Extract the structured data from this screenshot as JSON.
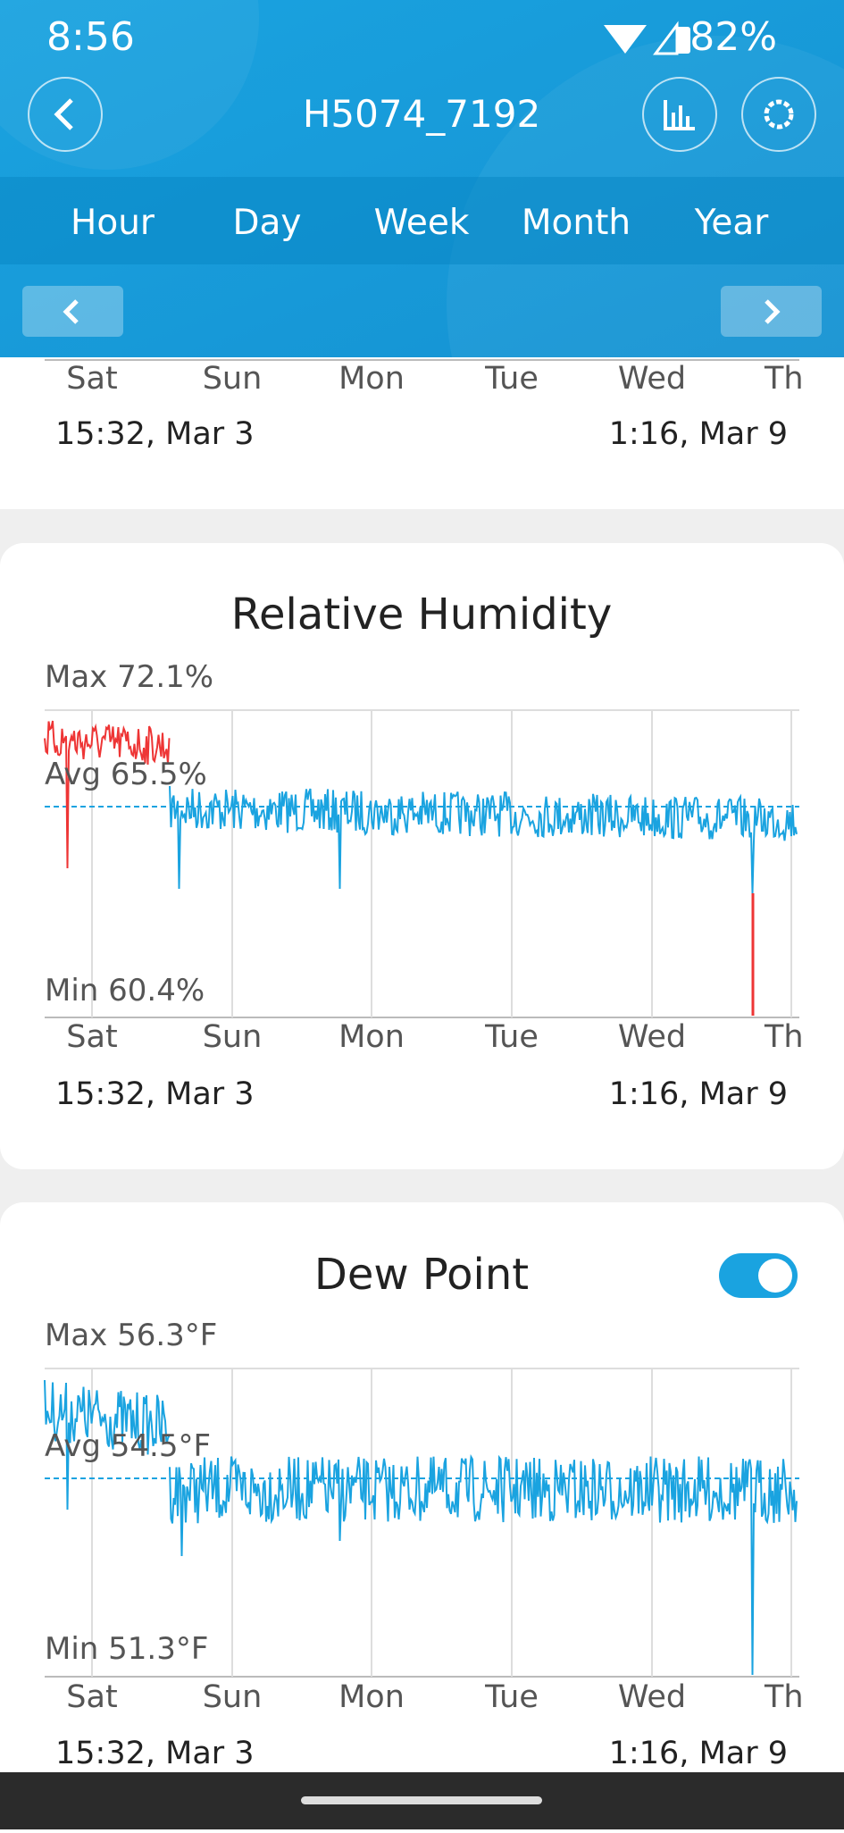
{
  "status_bar": {
    "time": "8:56",
    "battery": "82%"
  },
  "header": {
    "title": "H5074_7192"
  },
  "tabs": [
    "Hour",
    "Day",
    "Week",
    "Month",
    "Year"
  ],
  "cards": [
    {
      "x_labels": [
        "Sat",
        "Sun",
        "Mon",
        "Tue",
        "Wed",
        "Th"
      ],
      "start": "15:32,  Mar 3",
      "end": "1:16,  Mar 9"
    },
    {
      "title": "Relative Humidity",
      "max": "Max 72.1%",
      "avg": "Avg 65.5%",
      "min": "Min 60.4%",
      "x_labels": [
        "Sat",
        "Sun",
        "Mon",
        "Tue",
        "Wed",
        "Th"
      ],
      "start": "15:32,  Mar 3",
      "end": "1:16,  Mar 9"
    },
    {
      "title": "Dew Point",
      "max": "Max 56.3°F",
      "avg": "Avg 54.5°F",
      "min": "Min 51.3°F",
      "x_labels": [
        "Sat",
        "Sun",
        "Mon",
        "Tue",
        "Wed",
        "Th"
      ],
      "start": "15:32,  Mar 3",
      "end": "1:16,  Mar 9"
    }
  ]
}
